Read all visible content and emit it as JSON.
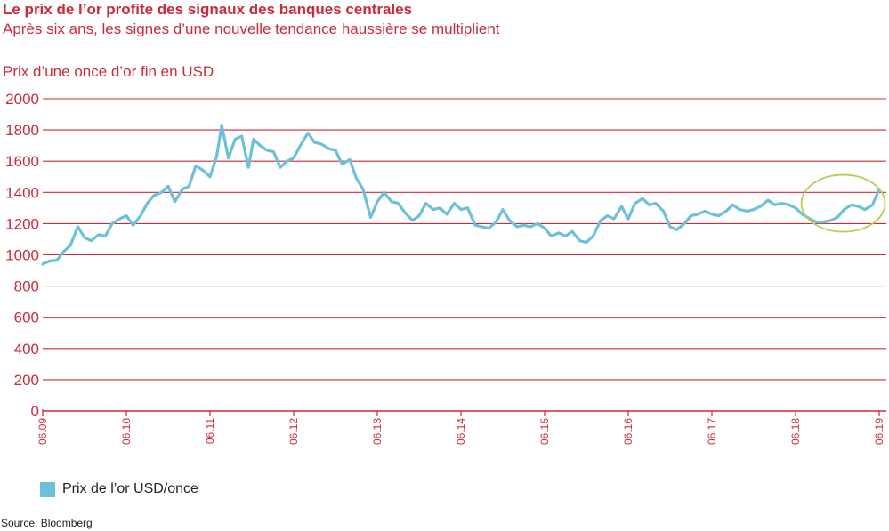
{
  "title": "Le prix de l’or profite des signaux des banques centrales",
  "subtitle": "Après six ans, les signes d’une nouvelle tendance haussière se multiplient",
  "source": "Source: Bloomberg",
  "colors": {
    "accent": "#cc2a3a",
    "series": "#6cc0d7",
    "highlight": "#b7cf5a"
  },
  "chart_data": {
    "type": "line",
    "title": "Le prix de l’or profite des signaux des banques centrales",
    "subtitle": "Après six ans, les signes d’une nouvelle tendance haussière se multiplient",
    "ylabel": "Prix d’une once d’or fin en USD",
    "xlabel": "",
    "ylim": [
      0,
      2000
    ],
    "xlim": [
      2009.0,
      2019.0
    ],
    "yticks": [
      "0",
      "200",
      "400",
      "600",
      "800",
      "1000",
      "1200",
      "1400",
      "1600",
      "1800",
      "2000"
    ],
    "xticks": [
      "06.09",
      "06.10",
      "06.11",
      "06.12",
      "06.13",
      "06.14",
      "06.15",
      "06.16",
      "06.17",
      "06.18",
      "06.19"
    ],
    "grid": "horizontal",
    "legend": "bottom-left",
    "annotation": "ellipse around mid-2018 to mid-2019",
    "series": [
      {
        "name": "Prix de l’or USD/once",
        "x": [
          2009.0,
          2009.08,
          2009.17,
          2009.25,
          2009.33,
          2009.42,
          2009.5,
          2009.58,
          2009.67,
          2009.75,
          2009.83,
          2009.92,
          2010.0,
          2010.08,
          2010.17,
          2010.25,
          2010.33,
          2010.42,
          2010.5,
          2010.58,
          2010.67,
          2010.75,
          2010.83,
          2010.92,
          2011.0,
          2011.08,
          2011.14,
          2011.22,
          2011.3,
          2011.38,
          2011.46,
          2011.52,
          2011.6,
          2011.68,
          2011.76,
          2011.84,
          2011.92,
          2012.0,
          2012.08,
          2012.17,
          2012.25,
          2012.33,
          2012.42,
          2012.5,
          2012.58,
          2012.67,
          2012.75,
          2012.83,
          2012.92,
          2013.0,
          2013.08,
          2013.17,
          2013.25,
          2013.33,
          2013.42,
          2013.5,
          2013.58,
          2013.67,
          2013.75,
          2013.83,
          2013.92,
          2014.0,
          2014.08,
          2014.17,
          2014.25,
          2014.33,
          2014.42,
          2014.5,
          2014.58,
          2014.67,
          2014.75,
          2014.83,
          2014.92,
          2015.0,
          2015.08,
          2015.17,
          2015.25,
          2015.33,
          2015.42,
          2015.5,
          2015.58,
          2015.67,
          2015.75,
          2015.83,
          2015.92,
          2016.0,
          2016.08,
          2016.17,
          2016.25,
          2016.33,
          2016.42,
          2016.5,
          2016.58,
          2016.67,
          2016.75,
          2016.83,
          2016.92,
          2017.0,
          2017.08,
          2017.17,
          2017.25,
          2017.33,
          2017.42,
          2017.5,
          2017.58,
          2017.67,
          2017.75,
          2017.83,
          2017.92,
          2018.0,
          2018.08,
          2018.17,
          2018.25,
          2018.33,
          2018.42,
          2018.5,
          2018.58,
          2018.67,
          2018.75,
          2018.83,
          2018.92,
          2019.0
        ],
        "y": [
          940,
          960,
          965,
          1020,
          1060,
          1180,
          1110,
          1090,
          1130,
          1120,
          1200,
          1230,
          1250,
          1190,
          1250,
          1330,
          1380,
          1400,
          1440,
          1340,
          1420,
          1440,
          1570,
          1540,
          1500,
          1630,
          1830,
          1620,
          1740,
          1760,
          1560,
          1740,
          1700,
          1670,
          1660,
          1560,
          1600,
          1620,
          1700,
          1780,
          1720,
          1710,
          1680,
          1670,
          1580,
          1610,
          1490,
          1420,
          1240,
          1340,
          1400,
          1340,
          1330,
          1270,
          1220,
          1250,
          1330,
          1290,
          1300,
          1260,
          1330,
          1290,
          1300,
          1190,
          1180,
          1170,
          1210,
          1290,
          1220,
          1180,
          1190,
          1180,
          1200,
          1170,
          1120,
          1140,
          1120,
          1150,
          1090,
          1080,
          1120,
          1220,
          1250,
          1230,
          1310,
          1230,
          1330,
          1360,
          1320,
          1330,
          1280,
          1180,
          1160,
          1200,
          1250,
          1260,
          1280,
          1260,
          1250,
          1280,
          1320,
          1290,
          1280,
          1290,
          1310,
          1350,
          1320,
          1330,
          1320,
          1300,
          1260,
          1230,
          1210,
          1210,
          1220,
          1240,
          1290,
          1320,
          1310,
          1290,
          1320,
          1420
        ]
      }
    ]
  }
}
